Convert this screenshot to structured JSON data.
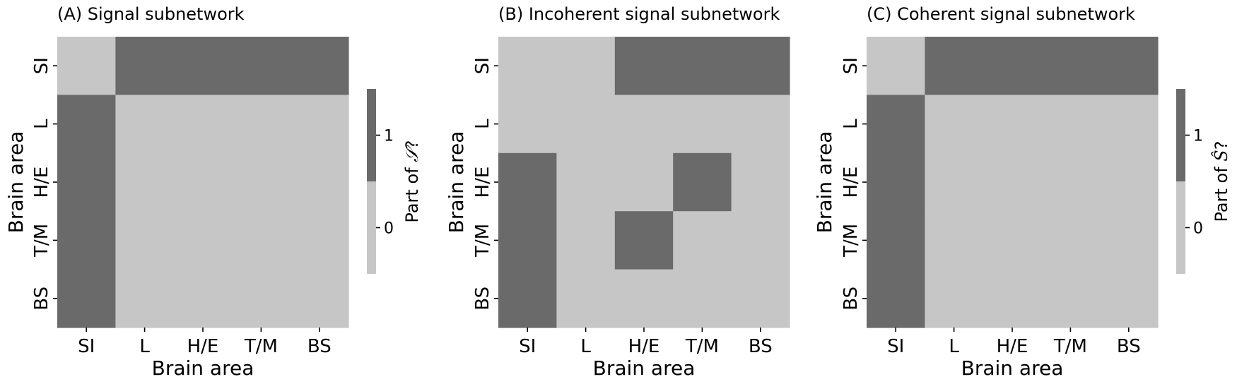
{
  "chart_data": [
    {
      "type": "heatmap",
      "title": "(A) Signal subnetwork",
      "xlabel": "Brain area",
      "ylabel": "Brain area",
      "x_categories": [
        "SI",
        "L",
        "H/E",
        "T/M",
        "BS"
      ],
      "y_categories": [
        "SI",
        "L",
        "H/E",
        "T/M",
        "BS"
      ],
      "matrix": [
        [
          0,
          1,
          1,
          1,
          1
        ],
        [
          1,
          0,
          0,
          0,
          0
        ],
        [
          1,
          0,
          0,
          0,
          0
        ],
        [
          1,
          0,
          0,
          0,
          0
        ],
        [
          1,
          0,
          0,
          0,
          0
        ]
      ],
      "colorbar": {
        "label_prefix": "Part of ",
        "label_symbol": "𝒮",
        "label_suffix": "?",
        "ticks": [
          "0",
          "1"
        ],
        "colors": {
          "0": "#c6c6c6",
          "1": "#6a6a6a"
        }
      }
    },
    {
      "type": "heatmap",
      "title": "(B) Incoherent signal subnetwork",
      "xlabel": "Brain area",
      "ylabel": "Brain area",
      "x_categories": [
        "SI",
        "L",
        "H/E",
        "T/M",
        "BS"
      ],
      "y_categories": [
        "SI",
        "L",
        "H/E",
        "T/M",
        "BS"
      ],
      "matrix": [
        [
          0,
          0,
          1,
          1,
          1
        ],
        [
          0,
          0,
          0,
          0,
          0
        ],
        [
          1,
          0,
          0,
          1,
          0
        ],
        [
          1,
          0,
          1,
          0,
          0
        ],
        [
          1,
          0,
          0,
          0,
          0
        ]
      ]
    },
    {
      "type": "heatmap",
      "title": "(C) Coherent signal subnetwork",
      "xlabel": "Brain area",
      "ylabel": "Brain area",
      "x_categories": [
        "SI",
        "L",
        "H/E",
        "T/M",
        "BS"
      ],
      "y_categories": [
        "SI",
        "L",
        "H/E",
        "T/M",
        "BS"
      ],
      "matrix": [
        [
          0,
          1,
          1,
          1,
          1
        ],
        [
          1,
          0,
          0,
          0,
          0
        ],
        [
          1,
          0,
          0,
          0,
          0
        ],
        [
          1,
          0,
          0,
          0,
          0
        ],
        [
          1,
          0,
          0,
          0,
          0
        ]
      ],
      "colorbar": {
        "label_prefix": "Part of ",
        "label_symbol": "Ŝ",
        "label_suffix": "?",
        "ticks": [
          "0",
          "1"
        ],
        "colors": {
          "0": "#c6c6c6",
          "1": "#6a6a6a"
        }
      }
    }
  ]
}
